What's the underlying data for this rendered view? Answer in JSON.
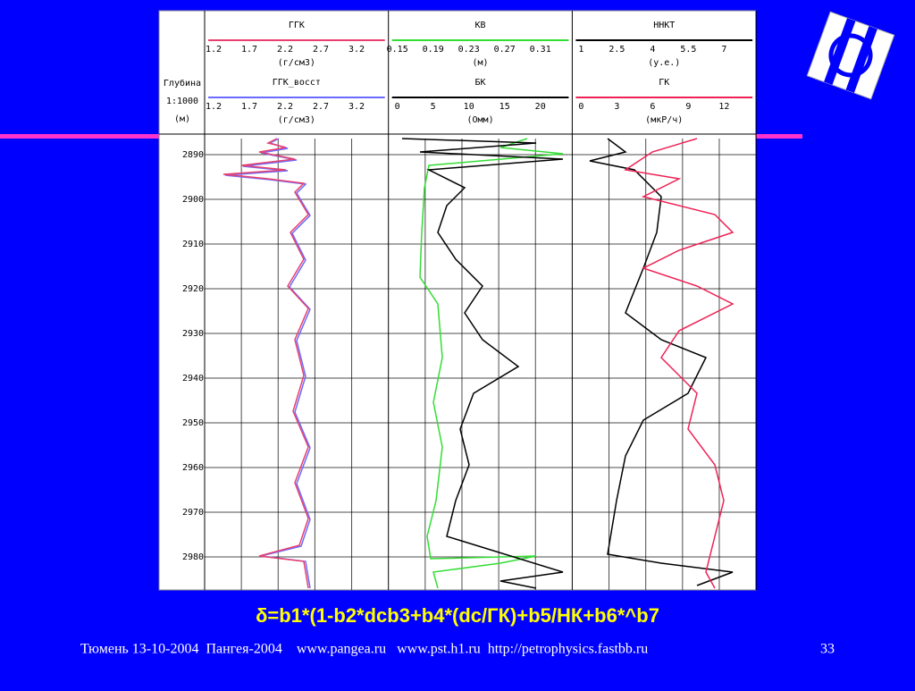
{
  "depth_title": [
    "Глубина",
    "1:1000",
    "(м)"
  ],
  "tracks": [
    {
      "curves": [
        {
          "name": "ГГК",
          "color": "#e8406e",
          "scale": [
            "1.2",
            "1.7",
            "2.2",
            "2.7",
            "3.2"
          ],
          "unit": "(г/см3)"
        },
        {
          "name": "ГГК_восст",
          "color": "#6a6aff",
          "scale": [
            "1.2",
            "1.7",
            "2.2",
            "2.7",
            "3.2"
          ],
          "unit": "(г/см3)"
        }
      ]
    },
    {
      "curves": [
        {
          "name": "КВ",
          "color": "#33dd33",
          "scale": [
            "0.15",
            "0.19",
            "0.23",
            "0.27",
            "0.31"
          ],
          "unit": "(м)"
        },
        {
          "name": "БК",
          "color": "#000000",
          "scale": [
            "0",
            "5",
            "10",
            "15",
            "20"
          ],
          "unit": "(Омм)"
        }
      ]
    },
    {
      "curves": [
        {
          "name": "ННКТ",
          "color": "#000000",
          "scale": [
            "1",
            "2.5",
            "4",
            "5.5",
            "7"
          ],
          "unit": "(у.е.)"
        },
        {
          "name": "ГК",
          "color": "#ee2255",
          "scale": [
            "0",
            "3",
            "6",
            "9",
            "12"
          ],
          "unit": "(мкР/ч)"
        }
      ]
    }
  ],
  "depths": [
    2890,
    2900,
    2910,
    2920,
    2930,
    2940,
    2950,
    2960,
    2970,
    2980
  ],
  "formula": "δ=b1*(1-b2*dcb3+b4*(dc/ГК)+b5/НК+b6*^b7",
  "footer": "Тюмень 13-10-2004  Пангея-2004    www.pangea.ru   www.pst.h1.ru  http://petrophysics.fastbb.ru",
  "page_number": "33"
}
